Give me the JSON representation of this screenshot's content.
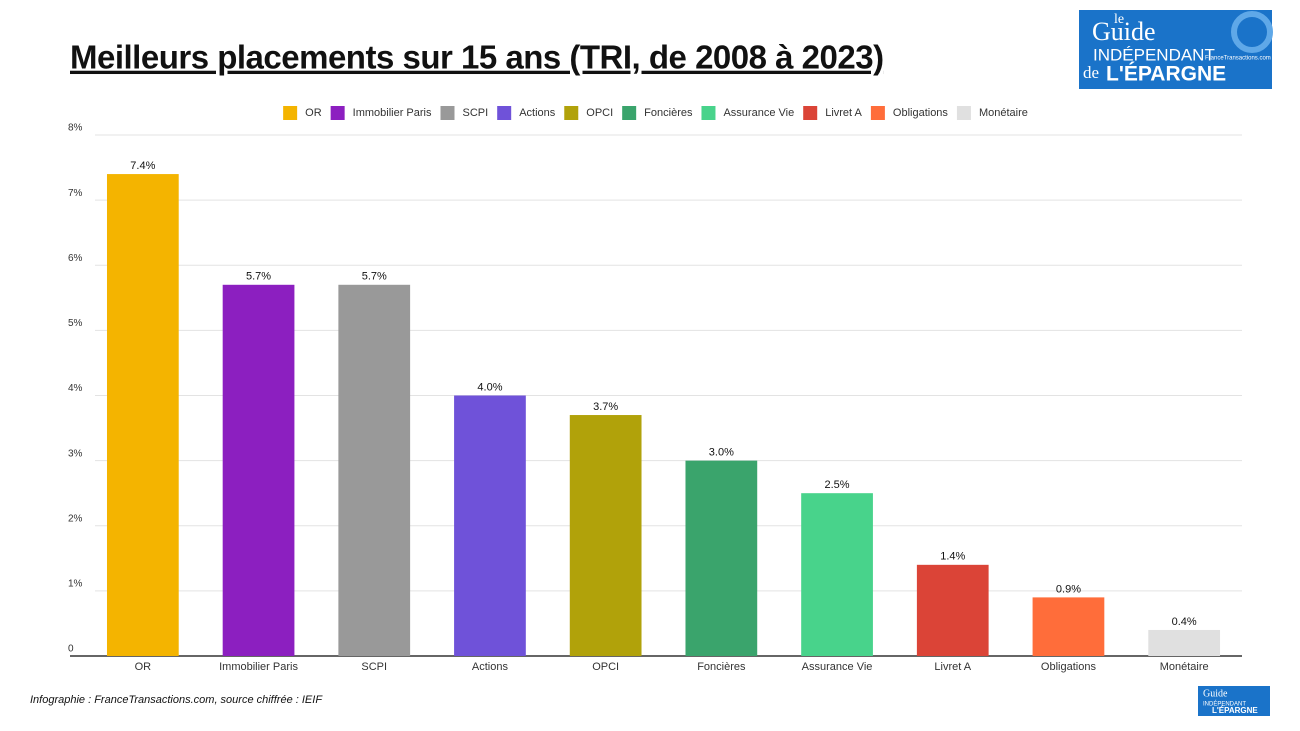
{
  "chart_data": {
    "type": "bar",
    "title": "Meilleurs placements sur 15 ans (TRI, de 2008 à 2023)",
    "categories": [
      "OR",
      "Immobilier Paris",
      "SCPI",
      "Actions",
      "OPCI",
      "Foncières",
      "Assurance Vie",
      "Livret A",
      "Obligations",
      "Monétaire"
    ],
    "values": [
      7.4,
      5.7,
      5.7,
      4.0,
      3.7,
      3.0,
      2.5,
      1.4,
      0.9,
      0.4
    ],
    "value_labels": [
      "7.4%",
      "5.7%",
      "5.7%",
      "4.0%",
      "3.7%",
      "3.0%",
      "2.5%",
      "1.4%",
      "0.9%",
      "0.4%"
    ],
    "colors": [
      "#f4b400",
      "#8c1fc0",
      "#999999",
      "#6f52d9",
      "#b1a20a",
      "#3aa46c",
      "#48d38b",
      "#db4437",
      "#ff6d3a",
      "#e0e0e0"
    ],
    "ylim": [
      0,
      8
    ],
    "yticks": [
      0,
      {
        "value": 1,
        "label": "1%"
      },
      {
        "value": 2,
        "label": "2%"
      },
      {
        "value": 3,
        "label": "3%"
      },
      {
        "value": 4,
        "label": "4%"
      },
      {
        "value": 5,
        "label": "5%"
      },
      {
        "value": 6,
        "label": "6%"
      },
      {
        "value": 7,
        "label": "7%"
      },
      {
        "value": 8,
        "label": "8%"
      }
    ],
    "grid": true,
    "legend": "top"
  },
  "footer": "Infographie : FranceTransactions.com, source chiffrée : IEIF",
  "logo": {
    "line1": "le",
    "line2": "Guide",
    "line3": "INDÉPENDANT",
    "line4": "de",
    "line5": "L'ÉPARGNE",
    "site": "FranceTransactions.com"
  }
}
